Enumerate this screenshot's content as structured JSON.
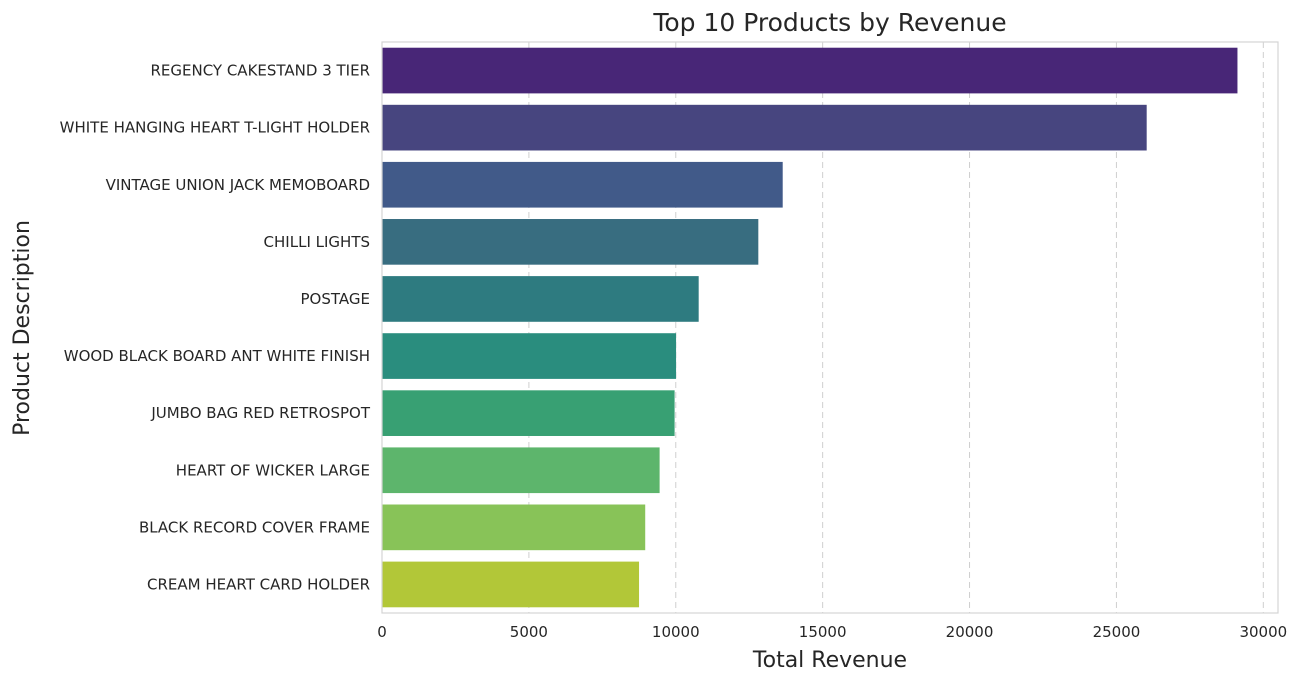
{
  "chart_data": {
    "type": "bar",
    "orientation": "horizontal",
    "title": "Top 10 Products by Revenue",
    "xlabel": "Total Revenue",
    "ylabel": "Product Description",
    "categories": [
      "REGENCY CAKESTAND 3 TIER",
      "WHITE HANGING HEART T-LIGHT HOLDER",
      "VINTAGE UNION JACK MEMOBOARD",
      "CHILLI LIGHTS",
      "POSTAGE",
      "WOOD BLACK BOARD ANT WHITE FINISH",
      "JUMBO BAG RED RETROSPOT",
      "HEART OF WICKER LARGE",
      "BLACK RECORD COVER FRAME",
      "CREAM HEART CARD HOLDER"
    ],
    "values": [
      29120,
      26030,
      13640,
      12810,
      10780,
      10010,
      9960,
      9450,
      8960,
      8750
    ],
    "colors": [
      "#482677",
      "#47457f",
      "#415a89",
      "#386d80",
      "#2e7b80",
      "#2a8d7e",
      "#38a073",
      "#5db56c",
      "#88c358",
      "#b2c738"
    ],
    "xlim": [
      0,
      30500
    ],
    "xticks": [
      0,
      5000,
      10000,
      15000,
      20000,
      25000,
      30000
    ],
    "grid": "x-dashed",
    "legend": "none"
  }
}
